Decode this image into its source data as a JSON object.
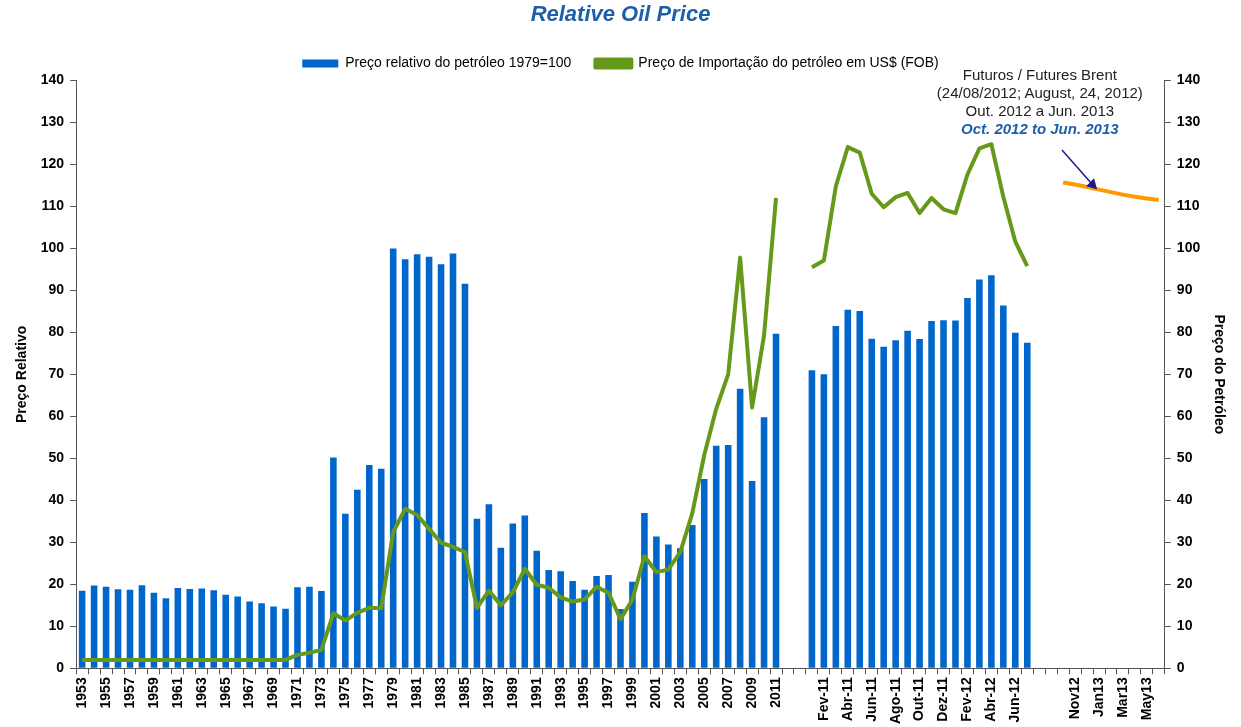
{
  "chart_data": {
    "type": "bar",
    "title": "Relative Oil Price",
    "ylabel": "Preço Relativo",
    "y2label": "Preço do Petróleo",
    "categories": [
      "1953",
      null,
      "1955",
      null,
      "1957",
      null,
      "1959",
      null,
      "1961",
      null,
      "1963",
      null,
      "1965",
      null,
      "1967",
      null,
      "1969",
      null,
      "1971",
      null,
      "1973",
      null,
      "1975",
      null,
      "1977",
      null,
      "1979",
      null,
      "1981",
      null,
      "1983",
      null,
      "1985",
      null,
      "1987",
      null,
      "1989",
      null,
      "1991",
      null,
      "1993",
      null,
      "1995",
      null,
      "1997",
      null,
      "1999",
      null,
      "2001",
      null,
      "2003",
      null,
      "2005",
      null,
      "2007",
      null,
      "2009",
      null,
      "2011",
      null,
      null,
      null,
      "Fev-11",
      null,
      "Abr-11",
      null,
      "Jun-11",
      null,
      "Ago-11",
      null,
      "Out-11",
      null,
      "Dez-11",
      null,
      "Fev-12",
      null,
      "Abr-12",
      null,
      "Jun-12",
      null,
      null,
      null,
      null,
      "Nov12",
      null,
      "Jan13",
      null,
      "Mar13",
      null,
      "May13",
      null
    ],
    "series": [
      {
        "name": "Preço relativo do petróleo 1979=100",
        "color": "#0066cc",
        "values": [
          18.5,
          19.7,
          19.4,
          18.8,
          18.7,
          19.8,
          18.0,
          16.7,
          19.1,
          18.9,
          19.0,
          18.6,
          17.5,
          17.1,
          15.9,
          15.5,
          14.7,
          14.2,
          19.3,
          19.4,
          18.4,
          50.2,
          36.8,
          42.5,
          48.4,
          47.5,
          100,
          97.4,
          98.6,
          98.0,
          96.2,
          98.8,
          91.6,
          35.6,
          39.1,
          28.7,
          34.5,
          36.4,
          28.0,
          23.4,
          23.1,
          20.8,
          18.7,
          22.0,
          22.2,
          14.1,
          20.6,
          37.0,
          31.4,
          29.5,
          28.6,
          34.1,
          45.1,
          53.0,
          53.2,
          66.6,
          44.6,
          59.8,
          79.7,
          null,
          null,
          71.0,
          70.0,
          81.5,
          85.4,
          85.1,
          78.5,
          76.6,
          78.1,
          80.4,
          78.4,
          82.7,
          82.9,
          82.8,
          88.2,
          92.6,
          93.6,
          86.4,
          79.9,
          77.5,
          null,
          null,
          null,
          null,
          null,
          null,
          null,
          null,
          null,
          null,
          null
        ]
      },
      {
        "name": "Preço de Importação do petróleo em US$ (FOB)",
        "type": "line",
        "color": "#66991a",
        "values": [
          2.0,
          2.0,
          2.0,
          2.0,
          2.0,
          2.0,
          2.0,
          2.0,
          2.0,
          2.0,
          2.0,
          2.0,
          2.0,
          2.0,
          2.0,
          2.0,
          2.0,
          2.0,
          3.2,
          3.7,
          4.4,
          13.1,
          11.4,
          13.2,
          14.4,
          14.3,
          32.4,
          38.0,
          36.5,
          33.2,
          29.9,
          28.9,
          27.7,
          14.4,
          18.5,
          15.0,
          18.1,
          23.7,
          19.9,
          19.2,
          16.9,
          15.9,
          16.4,
          19.4,
          18.0,
          11.7,
          16.4,
          26.7,
          22.9,
          23.5,
          27.7,
          36.9,
          50.8,
          61.8,
          70.0,
          97.8,
          62.1,
          79.3,
          112,
          null,
          null,
          95.5,
          97.1,
          114.8,
          124.1,
          122.8,
          113.0,
          109.8,
          112.2,
          113.2,
          108.4,
          112.0,
          109.3,
          108.4,
          117.6,
          123.8,
          124.8,
          112.3,
          101.6,
          95.8,
          null,
          null,
          null,
          null,
          null,
          null,
          null,
          null,
          null,
          null,
          null
        ]
      },
      {
        "type": "line",
        "color": "#ff9900",
        "values": [
          null,
          null,
          null,
          null,
          null,
          null,
          null,
          null,
          null,
          null,
          null,
          null,
          null,
          null,
          null,
          null,
          null,
          null,
          null,
          null,
          null,
          null,
          null,
          null,
          null,
          null,
          null,
          null,
          null,
          null,
          null,
          null,
          null,
          null,
          null,
          null,
          null,
          null,
          null,
          null,
          null,
          null,
          null,
          null,
          null,
          null,
          null,
          null,
          null,
          null,
          null,
          null,
          null,
          null,
          null,
          null,
          null,
          null,
          null,
          null,
          null,
          null,
          null,
          null,
          null,
          null,
          null,
          null,
          null,
          null,
          null,
          null,
          null,
          null,
          null,
          null,
          null,
          null,
          null,
          null,
          null,
          null,
          115.7,
          115.2,
          114.6,
          114.0,
          113.4,
          112.8,
          112.3,
          111.9,
          111.5
        ]
      }
    ],
    "ylim": [
      0,
      140
    ],
    "yticks": [
      0,
      10,
      20,
      30,
      40,
      50,
      60,
      70,
      80,
      90,
      100,
      110,
      120,
      130,
      140
    ],
    "y2lim": [
      0,
      140
    ],
    "y2ticks": [
      0,
      10,
      20,
      30,
      40,
      50,
      60,
      70,
      80,
      90,
      100,
      110,
      120,
      130,
      140
    ],
    "annotations": [
      "Futuros / Futures Brent",
      "(24/08/2012; August, 24, 2012)",
      "Out. 2012 a Jun. 2013",
      {
        "text": "Oct. 2012 to Jun. 2013",
        "x": "Jan13",
        "y": 114.0
      }
    ],
    "grid": false,
    "legend": "top",
    "marker": "none",
    "line_style": "solid"
  }
}
